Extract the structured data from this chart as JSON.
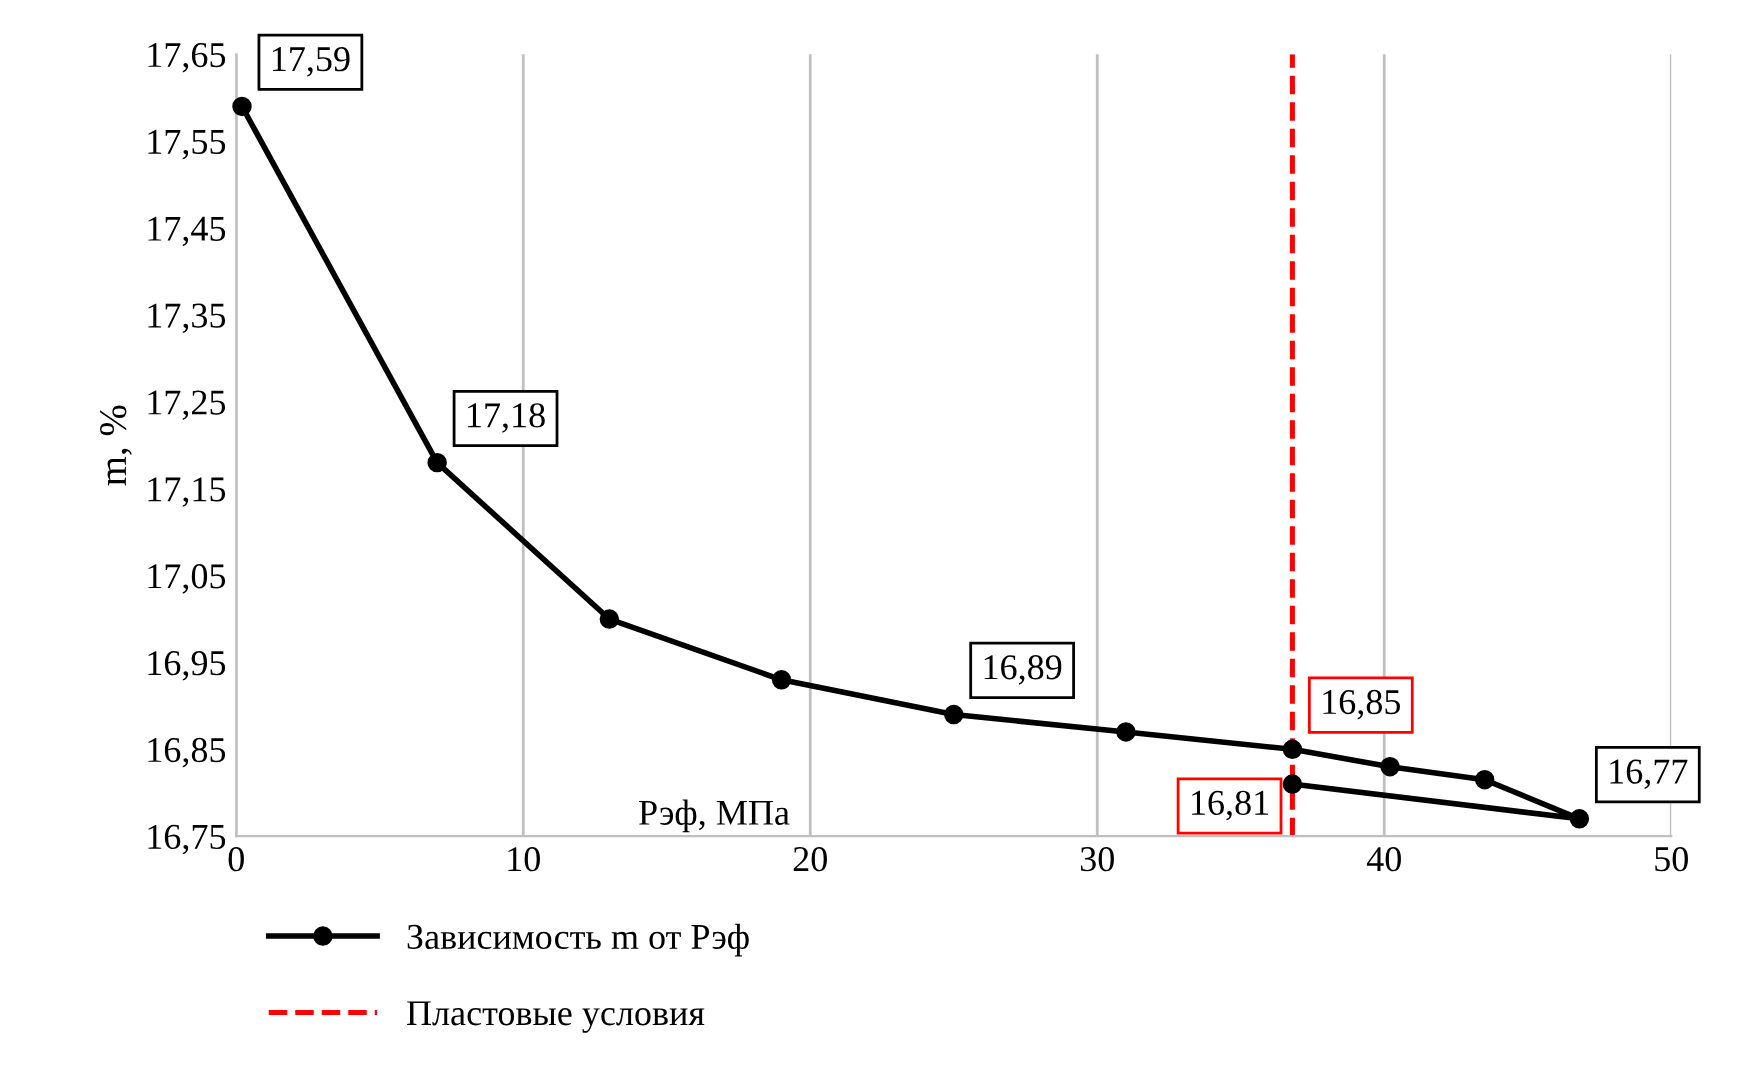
{
  "chart_data": {
    "type": "line",
    "xlabel": "Рэф, МПа",
    "ylabel": "m, %",
    "xlim": [
      0,
      50
    ],
    "xticks": [
      0,
      10,
      20,
      30,
      40,
      50
    ],
    "ylim": [
      16.75,
      17.65
    ],
    "yticks": [
      {
        "value": 16.75,
        "label": "16,75"
      },
      {
        "value": 16.85,
        "label": "16,85"
      },
      {
        "value": 16.95,
        "label": "16,95"
      },
      {
        "value": 17.05,
        "label": "17,05"
      },
      {
        "value": 17.15,
        "label": "17,15"
      },
      {
        "value": 17.25,
        "label": "17,25"
      },
      {
        "value": 17.35,
        "label": "17,35"
      },
      {
        "value": 17.45,
        "label": "17,45"
      },
      {
        "value": 17.55,
        "label": "17,55"
      },
      {
        "value": 17.65,
        "label": "17,65"
      }
    ],
    "series": [
      {
        "name": "Зависимость m от Рэф",
        "color": "#000000",
        "x": [
          0.2,
          7,
          13,
          19,
          25,
          31,
          36.8,
          40.2,
          43.5,
          46.8,
          36.8
        ],
        "values": [
          17.59,
          17.18,
          17.0,
          16.93,
          16.89,
          16.87,
          16.85,
          16.83,
          16.815,
          16.77,
          16.81
        ],
        "value_labels": [
          "17,59",
          "17,18",
          null,
          null,
          "16,89",
          null,
          "16,85",
          null,
          null,
          "16,77",
          "16,81"
        ]
      }
    ],
    "ref_lines": [
      {
        "axis": "x",
        "value": 36.8,
        "label": "Пластовые условия",
        "color": "#ff0000",
        "line_style": "dashed"
      }
    ],
    "marker": "circle",
    "line_style": "solid",
    "grid": "x",
    "legend": "bottom"
  }
}
